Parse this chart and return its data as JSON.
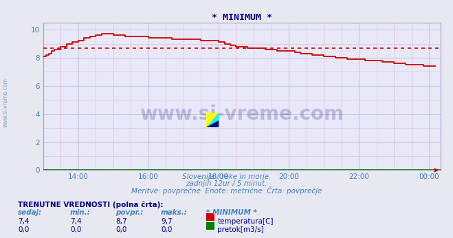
{
  "title": "* MINIMUM *",
  "title_color": "#000080",
  "bg_color": "#e8e8f0",
  "plot_bg_color": "#e8e8f8",
  "grid_major_color": "#c8c8e0",
  "grid_minor_color": "#e0c8d0",
  "xlim_hours": [
    13.0,
    24.33
  ],
  "ylim": [
    0,
    10.5
  ],
  "yticks": [
    0,
    2,
    4,
    6,
    8,
    10
  ],
  "xtick_labels": [
    "14:00",
    "16:00",
    "18:00",
    "20:00",
    "22:00",
    "00:00"
  ],
  "xtick_positions": [
    14.0,
    16.0,
    18.0,
    20.0,
    22.0,
    24.0
  ],
  "subtitle_lines": [
    "Slovenija / reke in morje.",
    "zadnjih 12ur / 5 minut.",
    "Meritve: povprečne  Enote: metrične  Črta: povprečje"
  ],
  "subtitle_color": "#4080c0",
  "watermark_text": "www.si-vreme.com",
  "watermark_color": "#000080",
  "left_label": "www.si-vreme.com",
  "left_label_color": "#6080b0",
  "avg_line_value": 8.7,
  "avg_line_color": "#cc0000",
  "temp_line_color": "#cc0000",
  "flow_line_color": "#008000",
  "table_title": "TRENUTNE VREDNOSTI (polna črta):",
  "table_headers": [
    "sedaj:",
    "min.:",
    "povpr.:",
    "maks.:",
    "* MINIMUM *"
  ],
  "table_row1_vals": [
    "7,4",
    "7,4",
    "8,7",
    "9,7"
  ],
  "table_row1_label": "temperatura[C]",
  "table_row1_color": "#cc0000",
  "table_row2_vals": [
    "0,0",
    "0,0",
    "0,0",
    "0,0"
  ],
  "table_row2_label": "pretok[m3/s]",
  "table_row2_color": "#008000",
  "table_text_color": "#000080",
  "temp_x": [
    13.0,
    13.08,
    13.17,
    13.25,
    13.33,
    13.5,
    13.67,
    13.83,
    14.0,
    14.17,
    14.33,
    14.5,
    14.67,
    14.83,
    15.0,
    15.17,
    15.33,
    15.5,
    15.67,
    15.83,
    16.0,
    16.17,
    16.33,
    16.5,
    16.67,
    16.83,
    17.0,
    17.17,
    17.33,
    17.5,
    17.67,
    17.83,
    18.0,
    18.17,
    18.33,
    18.5,
    18.67,
    18.83,
    19.0,
    19.17,
    19.33,
    19.5,
    19.67,
    19.83,
    20.0,
    20.17,
    20.33,
    20.5,
    20.67,
    20.83,
    21.0,
    21.17,
    21.33,
    21.5,
    21.67,
    21.83,
    22.0,
    22.17,
    22.33,
    22.5,
    22.67,
    22.83,
    23.0,
    23.17,
    23.33,
    23.5,
    23.67,
    23.83,
    24.0,
    24.17
  ],
  "temp_y": [
    8.1,
    8.2,
    8.3,
    8.5,
    8.6,
    8.8,
    9.0,
    9.1,
    9.2,
    9.4,
    9.5,
    9.6,
    9.7,
    9.7,
    9.6,
    9.6,
    9.5,
    9.5,
    9.5,
    9.5,
    9.4,
    9.4,
    9.4,
    9.4,
    9.3,
    9.3,
    9.3,
    9.3,
    9.3,
    9.2,
    9.2,
    9.2,
    9.1,
    9.0,
    8.9,
    8.8,
    8.8,
    8.7,
    8.7,
    8.7,
    8.6,
    8.6,
    8.5,
    8.5,
    8.5,
    8.4,
    8.3,
    8.3,
    8.2,
    8.2,
    8.1,
    8.1,
    8.0,
    8.0,
    7.9,
    7.9,
    7.9,
    7.8,
    7.8,
    7.8,
    7.7,
    7.7,
    7.6,
    7.6,
    7.5,
    7.5,
    7.5,
    7.4,
    7.4,
    7.4
  ]
}
